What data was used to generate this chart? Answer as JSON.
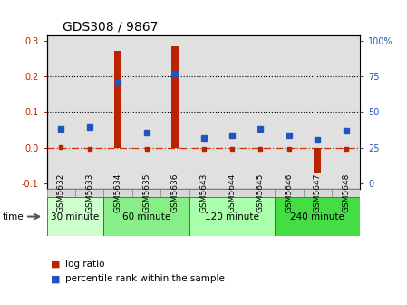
{
  "title": "GDS308 / 9867",
  "samples": [
    "GSM5632",
    "GSM5633",
    "GSM5634",
    "GSM5635",
    "GSM5636",
    "GSM5643",
    "GSM5644",
    "GSM5645",
    "GSM5646",
    "GSM5647",
    "GSM5648"
  ],
  "log_ratio": [
    0.002,
    -0.003,
    0.272,
    -0.003,
    0.283,
    -0.003,
    -0.003,
    -0.003,
    -0.003,
    -0.072,
    -0.003
  ],
  "percentile_left": [
    0.052,
    0.058,
    0.182,
    0.042,
    0.208,
    0.028,
    0.036,
    0.052,
    0.036,
    0.022,
    0.048
  ],
  "groups": [
    {
      "label": "30 minute",
      "start": 0,
      "end": 2,
      "color": "#ccffcc"
    },
    {
      "label": "60 minute",
      "start": 2,
      "end": 5,
      "color": "#88ee88"
    },
    {
      "label": "120 minute",
      "start": 5,
      "end": 8,
      "color": "#aaffaa"
    },
    {
      "label": "240 minute",
      "start": 8,
      "end": 11,
      "color": "#44dd44"
    }
  ],
  "ylim": [
    -0.115,
    0.315
  ],
  "yticks_left": [
    -0.1,
    0.0,
    0.1,
    0.2,
    0.3
  ],
  "bar_color": "#bb2200",
  "dot_color": "#2255bb",
  "hline_color": "#cc3300",
  "col_bg": "#e0e0e0",
  "title_fontsize": 10,
  "tick_fontsize": 7,
  "label_fontsize": 7.5,
  "legend_fontsize": 7.5
}
